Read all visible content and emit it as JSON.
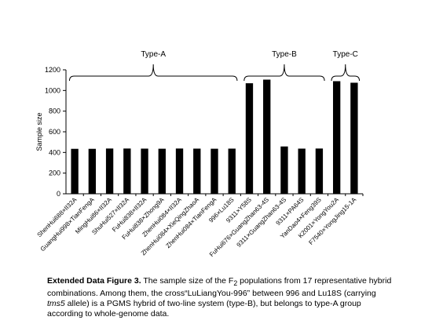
{
  "chart_data": {
    "type": "bar",
    "ylabel": "Sample size",
    "xlabel": "",
    "ylim": [
      0,
      1200
    ],
    "yticks": [
      0,
      200,
      400,
      600,
      800,
      1000,
      1200
    ],
    "grid": false,
    "bar_color": "#000000",
    "categories": [
      "ShenHui688×II32A",
      "GuangHui998×TianFengA",
      "MingHui86×II32A",
      "ShuHui527×II32A",
      "FuHui838×II32A",
      "FuHui838×Zhong9A",
      "ZhenHui084×II32A",
      "ZhenHui084×XieQingZhaoA",
      "ZhenHui084×TianFengA",
      "996×Lu18S",
      "9311×Y58S",
      "FuHui676×GuangZhan63-4S",
      "9311×GuangZhan63-4S",
      "9311×PA64S",
      "YanDao4×Feng39S",
      "K2001×YongYou2A",
      "F7540×YongJing15-1A"
    ],
    "values": [
      435,
      435,
      438,
      438,
      437,
      436,
      438,
      437,
      436,
      437,
      1070,
      1105,
      458,
      437,
      438,
      1090,
      1075
    ],
    "groups": [
      {
        "label": "Type-A",
        "from": 0,
        "to": 9
      },
      {
        "label": "Type-B",
        "from": 10,
        "to": 14
      },
      {
        "label": "Type-C",
        "from": 15,
        "to": 16
      }
    ]
  },
  "caption": {
    "title": "Extended Data Figure 3.",
    "text_1": " The sample size of the F",
    "sub": "2",
    "text_2": " populations from 17 representative hybrid combinations. Among them, the cross“LuLiangYou-996” between 996 and Lu18S (carrying ",
    "gene": "tms5",
    "text_3": " allele) is a PGMS hybrid of two-line system (type-B), but belongs to type-A group according to whole-genome data."
  }
}
